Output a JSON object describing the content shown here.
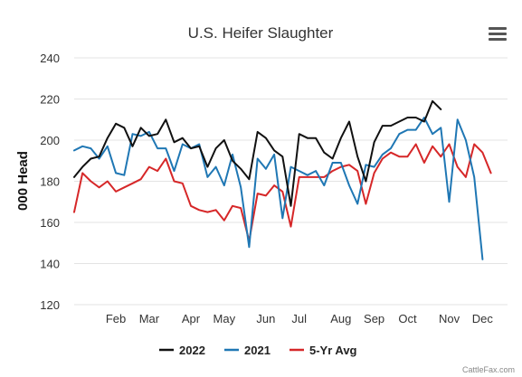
{
  "menu_icon": "hamburger-menu-icon",
  "credit": "CattleFax.com",
  "chart_data": {
    "type": "line",
    "title": "U.S. Heifer Slaughter",
    "ylabel": "000 Head",
    "xlabel": "",
    "ylim": [
      120,
      240
    ],
    "yticks": [
      120,
      140,
      160,
      180,
      200,
      220,
      240
    ],
    "xlim": [
      1,
      53
    ],
    "month_ticks": [
      {
        "label": "Feb",
        "week": 6
      },
      {
        "label": "Mar",
        "week": 10
      },
      {
        "label": "Apr",
        "week": 15
      },
      {
        "label": "May",
        "week": 19
      },
      {
        "label": "Jun",
        "week": 24
      },
      {
        "label": "Jul",
        "week": 28
      },
      {
        "label": "Aug",
        "week": 33
      },
      {
        "label": "Sep",
        "week": 37
      },
      {
        "label": "Oct",
        "week": 41
      },
      {
        "label": "Nov",
        "week": 46
      },
      {
        "label": "Dec",
        "week": 50
      }
    ],
    "grid": true,
    "legend_position": "bottom",
    "series": [
      {
        "name": "2022",
        "color": "#111111",
        "values": [
          182,
          187,
          191,
          192,
          201,
          208,
          206,
          197,
          206,
          202,
          203,
          210,
          199,
          201,
          196,
          197,
          187,
          196,
          200,
          190,
          186,
          181,
          204,
          201,
          195,
          192,
          168,
          203,
          201,
          201,
          194,
          191,
          201,
          209,
          192,
          180,
          199,
          207,
          207,
          209,
          211,
          211,
          209,
          219,
          215
        ]
      },
      {
        "name": "2021",
        "color": "#1f77b4",
        "values": [
          195,
          197,
          196,
          191,
          197,
          184,
          183,
          203,
          202,
          204,
          196,
          196,
          185,
          198,
          196,
          198,
          182,
          187,
          178,
          193,
          177,
          148,
          191,
          186,
          193,
          162,
          187,
          185,
          183,
          185,
          178,
          189,
          189,
          178,
          169,
          188,
          187,
          193,
          196,
          203,
          205,
          205,
          211,
          203,
          206,
          170,
          210,
          200,
          182,
          142
        ]
      },
      {
        "name": "5-Yr Avg",
        "color": "#d62728",
        "values": [
          165,
          184,
          180,
          177,
          180,
          175,
          177,
          179,
          181,
          187,
          185,
          191,
          180,
          179,
          168,
          166,
          165,
          166,
          161,
          168,
          167,
          151,
          174,
          173,
          178,
          175,
          158,
          182,
          182,
          182,
          182,
          185,
          187,
          188,
          185,
          169,
          184,
          191,
          194,
          192,
          192,
          198,
          189,
          197,
          192,
          198,
          187,
          182,
          198,
          194,
          184
        ]
      }
    ]
  }
}
